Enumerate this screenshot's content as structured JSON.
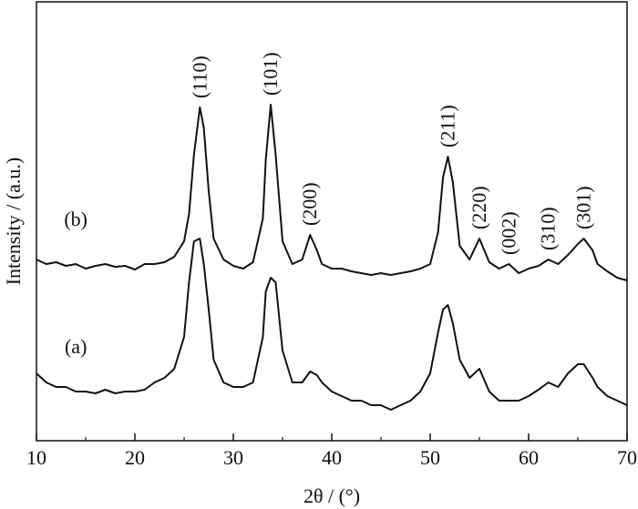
{
  "chart_data": {
    "type": "line",
    "xlabel": "2θ / (°)",
    "ylabel": "Intensity / (a.u.)",
    "x": [
      10,
      11,
      12,
      13,
      14,
      15,
      16,
      17,
      18,
      19,
      20,
      21,
      22,
      23,
      24,
      25,
      25.5,
      26,
      26.6,
      27,
      27.5,
      28,
      29,
      30,
      31,
      32,
      33,
      33.3,
      33.8,
      34.3,
      35,
      36,
      37,
      37.8,
      38.5,
      39,
      40,
      41,
      42,
      43,
      44,
      45,
      46,
      47,
      48,
      49,
      50,
      50.8,
      51.3,
      51.8,
      52.3,
      53,
      54,
      55,
      56,
      57,
      58,
      59,
      60,
      61,
      62,
      63,
      64,
      65,
      65.6,
      66.5,
      67,
      68,
      69,
      70
    ],
    "series": [
      {
        "name": "(a)",
        "color": "#111111",
        "values": [
          74,
          64,
          59,
          59,
          54,
          54,
          52,
          56,
          52,
          54,
          54,
          56,
          64,
          69,
          79,
          114,
          174,
          219,
          222,
          194,
          144,
          89,
          64,
          59,
          59,
          64,
          114,
          164,
          179,
          174,
          99,
          64,
          64,
          76,
          72,
          64,
          54,
          49,
          44,
          44,
          39,
          39,
          34,
          39,
          44,
          54,
          74,
          119,
          144,
          149,
          129,
          89,
          69,
          79,
          54,
          44,
          44,
          44,
          49,
          56,
          64,
          59,
          74,
          84,
          84,
          69,
          59,
          49,
          44,
          39
        ]
      },
      {
        "name": "(b)",
        "color": "#111111",
        "values": [
          199,
          194,
          196,
          192,
          194,
          189,
          192,
          194,
          191,
          192,
          188,
          194,
          194,
          196,
          202,
          219,
          249,
          314,
          366,
          344,
          274,
          222,
          199,
          192,
          189,
          196,
          244,
          309,
          369,
          314,
          219,
          194,
          199,
          226,
          209,
          194,
          189,
          189,
          186,
          184,
          182,
          184,
          182,
          184,
          186,
          189,
          194,
          229,
          289,
          312,
          284,
          214,
          199,
          222,
          196,
          189,
          194,
          184,
          189,
          192,
          199,
          194,
          204,
          216,
          222,
          209,
          194,
          186,
          179,
          176
        ]
      }
    ],
    "annotations": [
      {
        "text": "(110)",
        "x": 26.6
      },
      {
        "text": "(101)",
        "x": 33.8
      },
      {
        "text": "(200)",
        "x": 37.8
      },
      {
        "text": "(211)",
        "x": 51.8
      },
      {
        "text": "(220)",
        "x": 55
      },
      {
        "text": "(002)",
        "x": 58
      },
      {
        "text": "(310)",
        "x": 62
      },
      {
        "text": "(301)",
        "x": 65.6
      }
    ],
    "xlim": [
      10,
      70
    ],
    "xticks": [
      10,
      20,
      30,
      40,
      50,
      60,
      70
    ],
    "xminorticks": [
      15,
      25,
      35,
      45,
      55,
      65
    ],
    "ylim": [
      0,
      482
    ]
  }
}
